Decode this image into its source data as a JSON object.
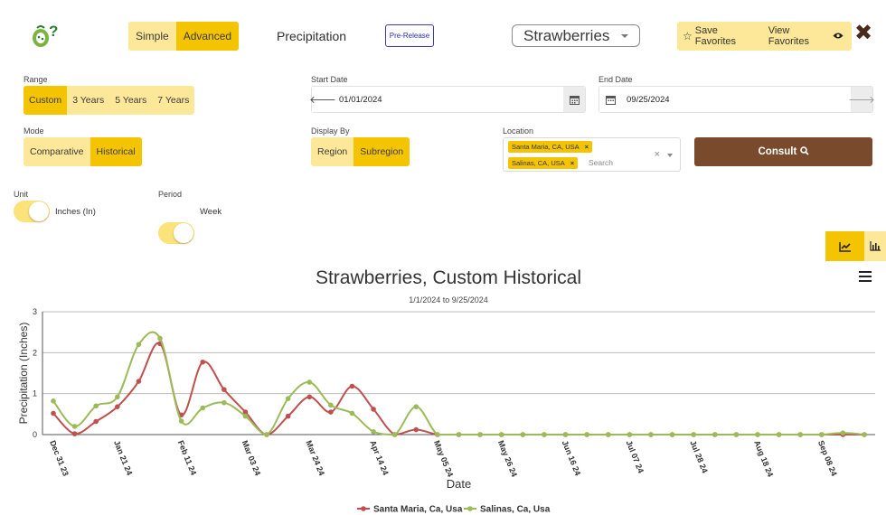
{
  "header": {
    "mode_options": [
      "Simple",
      "Advanced"
    ],
    "mode_active": "Advanced",
    "page_title": "Precipitation",
    "badge": "Pre-Release",
    "crop": "Strawberries",
    "save_favorites": "Save Favorites",
    "view_favorites": "View Favorites"
  },
  "filters": {
    "range_label": "Range",
    "range_options": [
      "Custom",
      "3 Years",
      "5 Years",
      "7 Years"
    ],
    "range_active": "Custom",
    "start_label": "Start Date",
    "start_value": "01/01/2024",
    "end_label": "End Date",
    "end_value": "09/25/2024",
    "mode_label": "Mode",
    "mode_options": [
      "Comparative",
      "Historical"
    ],
    "mode_active": "Historical",
    "display_label": "Display By",
    "display_options": [
      "Region",
      "Subregion"
    ],
    "display_active": "Subregion",
    "location_label": "Location",
    "locations": [
      "Santa Maria, CA, USA",
      "Salinas, CA, USA"
    ],
    "location_placeholder": "Search",
    "consult_label": "Consult",
    "unit_label": "Unit",
    "unit_value": "Inches (In)",
    "period_label": "Period",
    "period_value": "Week"
  },
  "chart_data": {
    "type": "line",
    "title": "Strawberries, Custom Historical",
    "subtitle": "1/1/2024 to 9/25/2024",
    "xlabel": "Date",
    "ylabel": "Precipitation (Inches)",
    "ylim": [
      0,
      3
    ],
    "yticks": [
      0,
      1,
      2,
      3
    ],
    "grid": true,
    "legend": "bottom",
    "x": [
      "2023-12-31",
      "2024-01-07",
      "2024-01-14",
      "2024-01-21",
      "2024-01-28",
      "2024-02-04",
      "2024-02-11",
      "2024-02-18",
      "2024-02-25",
      "2024-03-03",
      "2024-03-10",
      "2024-03-17",
      "2024-03-24",
      "2024-03-31",
      "2024-04-07",
      "2024-04-14",
      "2024-04-21",
      "2024-04-28",
      "2024-05-05",
      "2024-05-12",
      "2024-05-19",
      "2024-05-26",
      "2024-06-02",
      "2024-06-09",
      "2024-06-16",
      "2024-06-23",
      "2024-06-30",
      "2024-07-07",
      "2024-07-14",
      "2024-07-21",
      "2024-07-28",
      "2024-08-04",
      "2024-08-11",
      "2024-08-18",
      "2024-08-25",
      "2024-09-01",
      "2024-09-08",
      "2024-09-15",
      "2024-09-22"
    ],
    "x_ticks": [
      "Dec 31 23",
      "Jan 21 24",
      "Feb 11 24",
      "Mar 03 24",
      "Mar 24 24",
      "Apr 14 24",
      "May 05 24",
      "May 26 24",
      "Jun 16 24",
      "Jul 07 24",
      "Jul 28 24",
      "Aug 18 24",
      "Sep 08 24"
    ],
    "series": [
      {
        "name": "Santa Maria, Ca, Usa",
        "color": "#c0504d",
        "values": [
          0.52,
          0.02,
          0.32,
          0.68,
          1.3,
          2.22,
          0.48,
          1.77,
          1.1,
          0.55,
          0.0,
          0.45,
          0.92,
          0.55,
          1.18,
          0.62,
          0.0,
          0.12,
          0.0,
          0.0,
          0.0,
          0.0,
          0.0,
          0.0,
          0.0,
          0.0,
          0.0,
          0.0,
          0.0,
          0.0,
          0.0,
          0.0,
          0.0,
          0.0,
          0.0,
          0.0,
          0.0,
          0.0,
          0.0
        ]
      },
      {
        "name": "Salinas, Ca, Usa",
        "color": "#9bbb59",
        "values": [
          0.82,
          0.2,
          0.7,
          0.92,
          2.2,
          2.35,
          0.33,
          0.65,
          0.78,
          0.45,
          0.0,
          0.88,
          1.28,
          0.72,
          0.52,
          0.07,
          0.0,
          0.68,
          0.0,
          0.0,
          0.0,
          0.0,
          0.0,
          0.0,
          0.0,
          0.0,
          0.0,
          0.0,
          0.0,
          0.0,
          0.0,
          0.0,
          0.0,
          0.0,
          0.0,
          0.0,
          0.0,
          0.04,
          0.0
        ]
      }
    ]
  },
  "colors": {
    "accent": "#f5c400",
    "accent_light": "#fde89a",
    "consult_bg": "#7a4a2d"
  }
}
